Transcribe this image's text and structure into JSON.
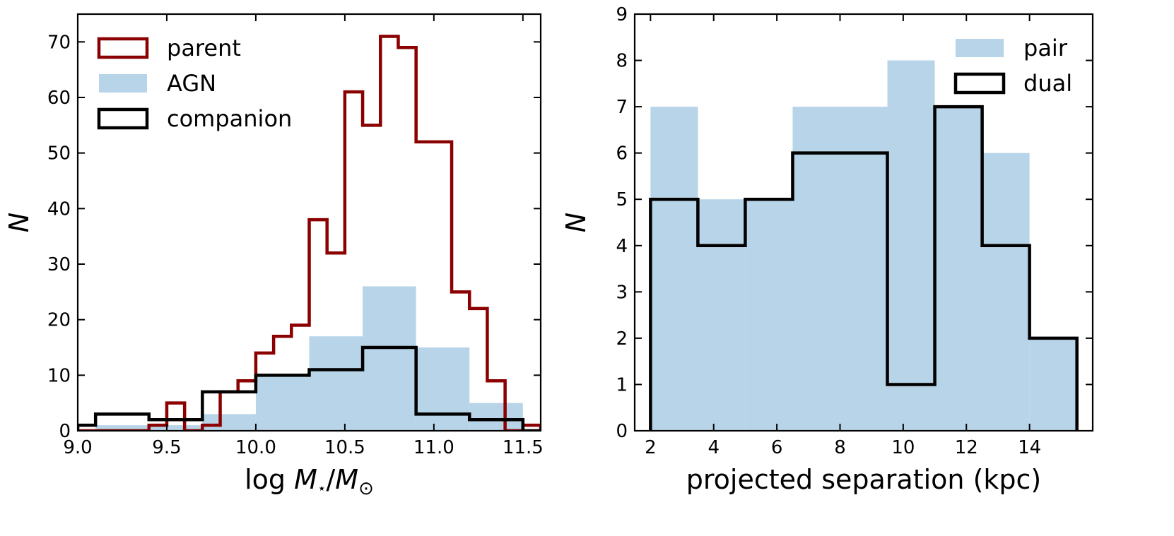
{
  "chart_data": [
    {
      "type": "histogram",
      "xlabel": "log M⋆/M⊙",
      "xlabel_parts": {
        "log": "log",
        "m1": "M",
        "sub1": "⋆",
        "slash": "/",
        "m2": "M",
        "sub2": "⊙"
      },
      "ylabel": "N",
      "xlim": [
        9.0,
        11.6
      ],
      "ylim": [
        0,
        75
      ],
      "xticks": [
        9.0,
        9.5,
        10.0,
        10.5,
        11.0,
        11.5
      ],
      "xtick_labels": [
        "9.0",
        "9.5",
        "10.0",
        "10.5",
        "11.0",
        "11.5"
      ],
      "yticks": [
        0,
        10,
        20,
        30,
        40,
        50,
        60,
        70
      ],
      "ytick_labels": [
        "0",
        "10",
        "20",
        "30",
        "40",
        "50",
        "60",
        "70"
      ],
      "legend_position": "top-left",
      "series": [
        {
          "name": "parent",
          "style": "step",
          "color": "#8b0000",
          "edges": [
            9.0,
            9.1,
            9.2,
            9.3,
            9.4,
            9.5,
            9.6,
            9.7,
            9.8,
            9.9,
            10.0,
            10.1,
            10.2,
            10.3,
            10.4,
            10.5,
            10.6,
            10.7,
            10.8,
            10.9,
            11.0,
            11.1,
            11.2,
            11.3,
            11.4,
            11.5,
            11.6
          ],
          "values": [
            0,
            0,
            0,
            0,
            1,
            5,
            0,
            1,
            7,
            9,
            14,
            17,
            19,
            38,
            32,
            61,
            55,
            71,
            69,
            52,
            52,
            25,
            22,
            9,
            0,
            1
          ]
        },
        {
          "name": "AGN",
          "style": "filled",
          "color": "#b8d4e8",
          "edges": [
            9.1,
            9.4,
            9.7,
            10.0,
            10.3,
            10.6,
            10.9,
            11.2,
            11.5
          ],
          "values": [
            1,
            1,
            3,
            10,
            17,
            26,
            15,
            5
          ]
        },
        {
          "name": "companion",
          "style": "step",
          "color": "#000000",
          "edges": [
            9.0,
            9.1,
            9.4,
            9.7,
            10.0,
            10.3,
            10.6,
            10.9,
            11.2,
            11.5,
            11.6
          ],
          "values": [
            1,
            3,
            2,
            7,
            10,
            11,
            15,
            3,
            2,
            0
          ]
        }
      ]
    },
    {
      "type": "histogram",
      "xlabel": "projected separation (kpc)",
      "ylabel": "N",
      "xlim": [
        1.5,
        16.0
      ],
      "ylim": [
        0,
        9
      ],
      "xticks": [
        2,
        4,
        6,
        8,
        10,
        12,
        14
      ],
      "xtick_labels": [
        "2",
        "4",
        "6",
        "8",
        "10",
        "12",
        "14"
      ],
      "yticks": [
        0,
        1,
        2,
        3,
        4,
        5,
        6,
        7,
        8,
        9
      ],
      "ytick_labels": [
        "0",
        "1",
        "2",
        "3",
        "4",
        "5",
        "6",
        "7",
        "8",
        "9"
      ],
      "legend_position": "top-right",
      "series": [
        {
          "name": "pair",
          "style": "filled",
          "color": "#b8d4e8",
          "edges": [
            2.0,
            3.5,
            5.0,
            6.5,
            8.0,
            9.5,
            11.0,
            12.5,
            14.0,
            15.5
          ],
          "values": [
            7,
            5,
            5,
            7,
            7,
            8,
            7,
            6,
            2
          ]
        },
        {
          "name": "dual",
          "style": "step",
          "color": "#000000",
          "edges": [
            2.0,
            3.5,
            5.0,
            6.5,
            8.0,
            9.5,
            11.0,
            12.5,
            14.0,
            15.5
          ],
          "values": [
            5,
            4,
            5,
            6,
            6,
            1,
            7,
            4,
            2
          ]
        }
      ]
    }
  ]
}
